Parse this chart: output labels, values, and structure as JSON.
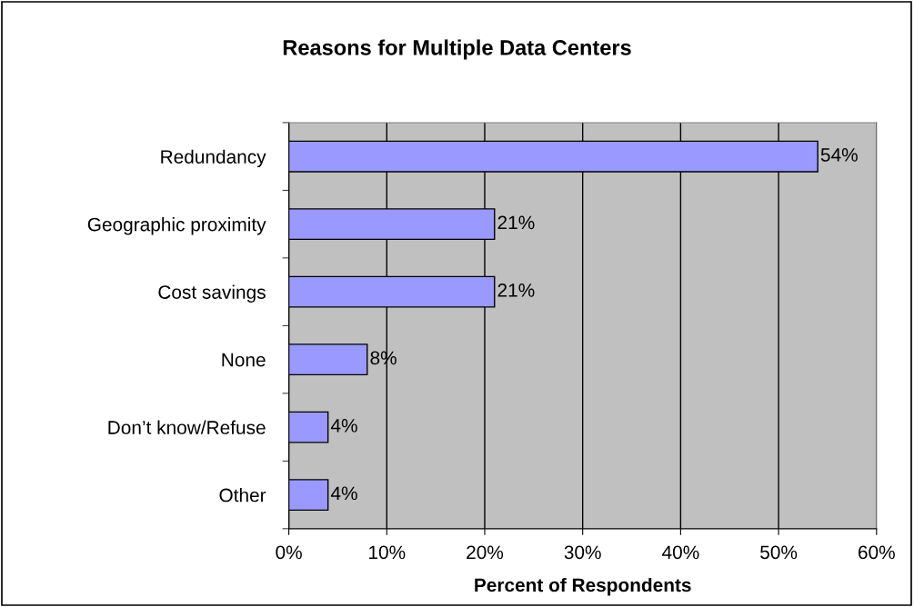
{
  "chart_data": {
    "type": "bar",
    "orientation": "horizontal",
    "title": "Reasons for Multiple Data Centers",
    "xlabel": "Percent of Respondents",
    "categories": [
      "Redundancy",
      "Geographic proximity",
      "Cost savings",
      "None",
      "Don’t know/Refuse",
      "Other"
    ],
    "values": [
      54,
      21,
      21,
      8,
      4,
      4
    ],
    "value_labels": [
      "54%",
      "21%",
      "21%",
      "8%",
      "4%",
      "4%"
    ],
    "color": "#9999ff",
    "xlim": [
      0,
      60
    ],
    "xticks": [
      {
        "value": 0,
        "label": "0%"
      },
      {
        "value": 10,
        "label": "10%"
      },
      {
        "value": 20,
        "label": "20%"
      },
      {
        "value": 30,
        "label": "30%"
      },
      {
        "value": 40,
        "label": "40%"
      },
      {
        "value": 50,
        "label": "50%"
      },
      {
        "value": 60,
        "label": "60%"
      }
    ],
    "grid": "x",
    "legend": false
  }
}
